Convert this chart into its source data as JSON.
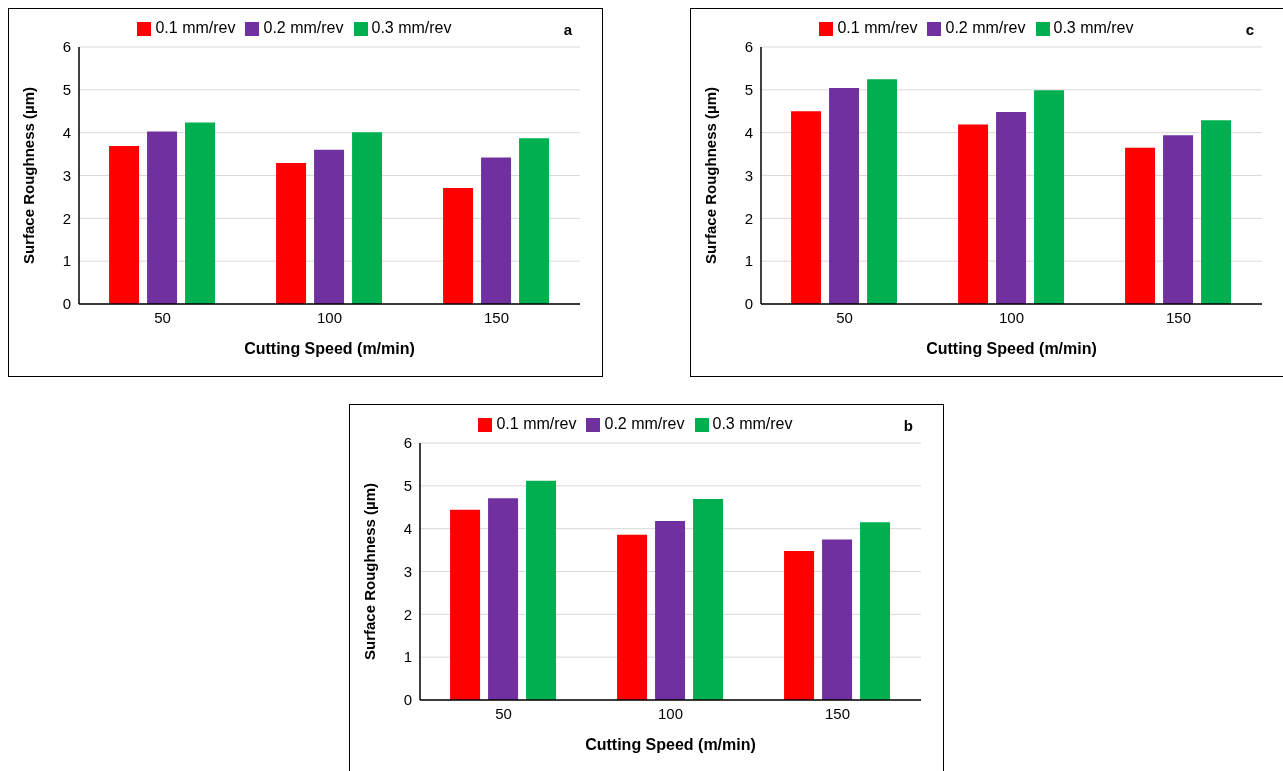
{
  "chart_data": [
    {
      "type": "bar",
      "categories": [
        "50",
        "100",
        "150"
      ],
      "xlabel": "Cutting Speed (m/min)",
      "ylabel": "Surface Roughness (µm)",
      "ylim": [
        0,
        6
      ],
      "yticks": [
        0,
        1,
        2,
        3,
        4,
        5,
        6
      ],
      "grid": "y",
      "legend": "top",
      "annotations": [
        "a"
      ],
      "series": [
        {
          "name": "0.1 mm/rev",
          "color": "#ff0000",
          "values": [
            3.69,
            3.29,
            2.71
          ]
        },
        {
          "name": "0.2 mm/rev",
          "color": "#7030a0",
          "values": [
            4.03,
            3.6,
            3.42
          ]
        },
        {
          "name": "0.3 mm/rev",
          "color": "#00b050",
          "values": [
            4.24,
            4.01,
            3.87
          ]
        }
      ]
    },
    {
      "type": "bar",
      "categories": [
        "50",
        "100",
        "150"
      ],
      "xlabel": "Cutting Speed (m/min)",
      "ylabel": "Surface Roughness (µm)",
      "ylim": [
        0,
        6
      ],
      "yticks": [
        0,
        1,
        2,
        3,
        4,
        5,
        6
      ],
      "grid": "y",
      "legend": "top",
      "annotations": [
        "c"
      ],
      "series": [
        {
          "name": "0.1 mm/rev",
          "color": "#ff0000",
          "values": [
            4.5,
            4.19,
            3.65
          ]
        },
        {
          "name": "0.2 mm/rev",
          "color": "#7030a0",
          "values": [
            5.04,
            4.48,
            3.94
          ]
        },
        {
          "name": "0.3 mm/rev",
          "color": "#00b050",
          "values": [
            5.25,
            4.99,
            4.29
          ]
        }
      ]
    },
    {
      "type": "bar",
      "categories": [
        "50",
        "100",
        "150"
      ],
      "xlabel": "Cutting Speed (m/min)",
      "ylabel": "Surface Roughness (µm)",
      "ylim": [
        0,
        6
      ],
      "yticks": [
        0,
        1,
        2,
        3,
        4,
        5,
        6
      ],
      "grid": "y",
      "legend": "top",
      "annotations": [
        "b"
      ],
      "series": [
        {
          "name": "0.1 mm/rev",
          "color": "#ff0000",
          "values": [
            4.44,
            3.86,
            3.48
          ]
        },
        {
          "name": "0.2 mm/rev",
          "color": "#7030a0",
          "values": [
            4.71,
            4.18,
            3.75
          ]
        },
        {
          "name": "0.3 mm/rev",
          "color": "#00b050",
          "values": [
            5.12,
            4.69,
            4.15
          ]
        }
      ]
    }
  ]
}
